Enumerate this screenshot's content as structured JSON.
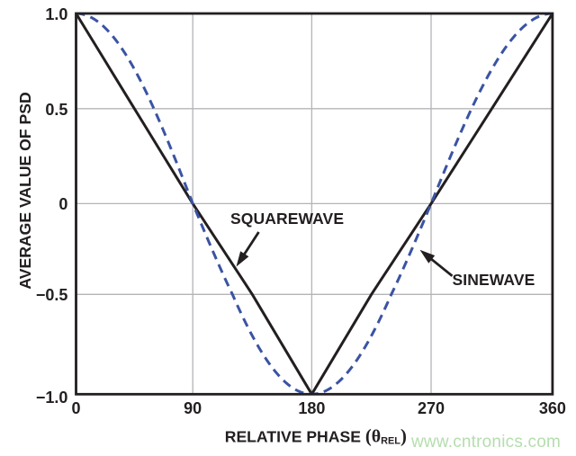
{
  "page": {
    "background_color": "#ffffff",
    "watermark": {
      "text": "www.cntronics.com",
      "color": "#b5ddae"
    }
  },
  "chart_data": {
    "type": "line",
    "title": "",
    "xlabel": "RELATIVE PHASE (θREL)",
    "xlabel_parts": {
      "text_before": "RELATIVE PHASE ",
      "open_paren": "(",
      "theta_symbol": "θ",
      "subscript": "REL",
      "close_paren": ")"
    },
    "ylabel": "AVERAGE VALUE OF PSD",
    "xlim": [
      0,
      360
    ],
    "ylim": [
      -1.0,
      1.0
    ],
    "grid": true,
    "x_ticks": [
      {
        "value": 0,
        "label": "0"
      },
      {
        "value": 90,
        "label": "90"
      },
      {
        "value": 180,
        "label": "180"
      },
      {
        "value": 270,
        "label": "270"
      },
      {
        "value": 360,
        "label": "360"
      }
    ],
    "y_ticks": [
      {
        "value": 1.0,
        "label": "1.0"
      },
      {
        "value": 0.5,
        "label": "0.5"
      },
      {
        "value": 0,
        "label": "0"
      },
      {
        "value": -0.5,
        "label": "−0.5"
      },
      {
        "value": -1.0,
        "label": "−1.0"
      }
    ],
    "series": [
      {
        "name": "SQUAREWAVE",
        "shape": "triangle",
        "line_style": "solid",
        "color": "#231f20",
        "points": [
          [
            0,
            1.0
          ],
          [
            90,
            0
          ],
          [
            180,
            -1.0
          ],
          [
            270,
            0
          ],
          [
            360,
            1.0
          ]
        ]
      },
      {
        "name": "SINEWAVE",
        "shape": "cosine",
        "line_style": "dashed",
        "color": "#3a53a3",
        "points": [
          [
            0,
            1.0
          ],
          [
            90,
            0
          ],
          [
            180,
            -1.0
          ],
          [
            270,
            0
          ],
          [
            360,
            1.0
          ]
        ]
      }
    ],
    "annotations": [
      {
        "label": "SQUAREWAVE",
        "points_to_series": "SQUAREWAVE"
      },
      {
        "label": "SINEWAVE",
        "points_to_series": "SINEWAVE"
      }
    ],
    "colors": {
      "axis_and_text": "#231f20",
      "gridline": "#b4b4b8",
      "plot_background": "#ffffff"
    }
  }
}
